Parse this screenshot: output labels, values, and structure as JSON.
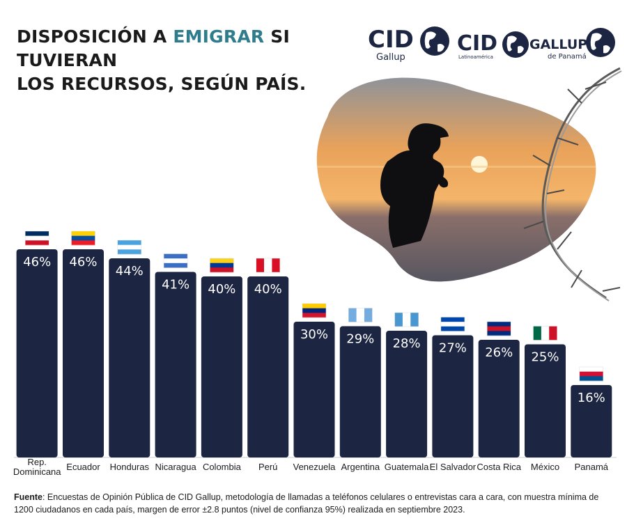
{
  "title": {
    "part1": "DISPOSICIÓN A ",
    "accent": "EMIGRAR",
    "part2": " SI TUVIERAN",
    "line2": "LOS RECURSOS, SEGÚN PAÍS."
  },
  "logos": {
    "cid_gallup": {
      "main": "CID",
      "sub": "Gallup"
    },
    "cid_latam": {
      "main": "CID",
      "sub": "Latinoamérica"
    },
    "gallup_panama": {
      "main": "GALLUP",
      "sub": "de Panamá"
    }
  },
  "colors": {
    "bar": "#1c2541",
    "accent": "#2f7d8c",
    "text": "#1a1a1a"
  },
  "chart_data": {
    "type": "bar",
    "categories": [
      "Rep. Dominicana",
      "Ecuador",
      "Honduras",
      "Nicaragua",
      "Colombia",
      "Perú",
      "Venezuela",
      "Argentina",
      "Guatemala",
      "El Salvador",
      "Costa Rica",
      "México",
      "Panamá"
    ],
    "values": [
      46,
      46,
      44,
      41,
      40,
      40,
      30,
      29,
      28,
      27,
      26,
      25,
      16
    ],
    "value_labels": [
      "46%",
      "46%",
      "44%",
      "41%",
      "40%",
      "40%",
      "30%",
      "29%",
      "28%",
      "27%",
      "26%",
      "25%",
      "16%"
    ],
    "ylim": [
      0,
      50
    ],
    "grid": false,
    "xlabel": "",
    "ylabel": ""
  },
  "footnote": {
    "label": "Fuente",
    "text": ": Encuestas de Opinión Pública de CID Gallup, metodología de llamadas a teléfonos celulares o entrevistas cara a cara, con muestra mínima de 1200 ciudadanos en cada país, margen de error ±2.8 puntos (nivel de confianza 95%) realizada en septiembre 2023."
  }
}
